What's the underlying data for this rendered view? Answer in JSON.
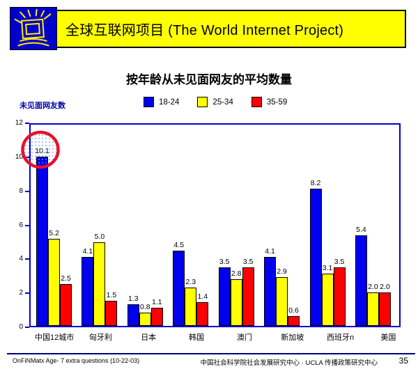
{
  "header": {
    "title": "全球互联网项目 (The World Internet Project)",
    "logo_icon": "shining-monitor-icon",
    "background_color": "#FFFF00",
    "logo_color": "#0000CC"
  },
  "slide_title": "按年龄从未见面网友的平均数量",
  "chart_data": {
    "type": "bar",
    "title": "按年龄从未见面网友的平均数量",
    "ylabel": "未见面网友数",
    "xlabel": "",
    "ylim": [
      0,
      12
    ],
    "yticks": [
      0,
      2,
      4,
      6,
      8,
      10,
      12
    ],
    "grid": false,
    "legend_position": "top-center",
    "axis_color": "#0000CC",
    "categories": [
      "中国12城市",
      "匈牙利",
      "日本",
      "韩国",
      "澳门",
      "新加坡",
      "西班牙n",
      "美国"
    ],
    "series": [
      {
        "name": "18-24",
        "color": "#0000EE",
        "values": [
          10.1,
          4.1,
          1.3,
          4.5,
          3.5,
          4.1,
          8.2,
          5.4
        ]
      },
      {
        "name": "25-34",
        "color": "#FFFF00",
        "values": [
          5.2,
          5.0,
          0.8,
          2.3,
          2.8,
          2.9,
          3.1,
          2.0
        ]
      },
      {
        "name": "35-59",
        "color": "#FF0000",
        "values": [
          2.5,
          1.5,
          1.1,
          1.4,
          3.5,
          0.6,
          3.5,
          2.0
        ]
      }
    ],
    "annotation": {
      "shape": "ellipse",
      "highlights": "10.1",
      "stroke_color": "#E8112D",
      "note": "red dotted ellipse circling the 18-24 value for 中国12城市"
    }
  },
  "footer": {
    "left": "OnFiNMatx Age- 7 extra questions (10-22-03)",
    "right": "中国社会科学院社会发展研究中心 · UCLA 传播政策研究中心",
    "page_number": "35"
  }
}
